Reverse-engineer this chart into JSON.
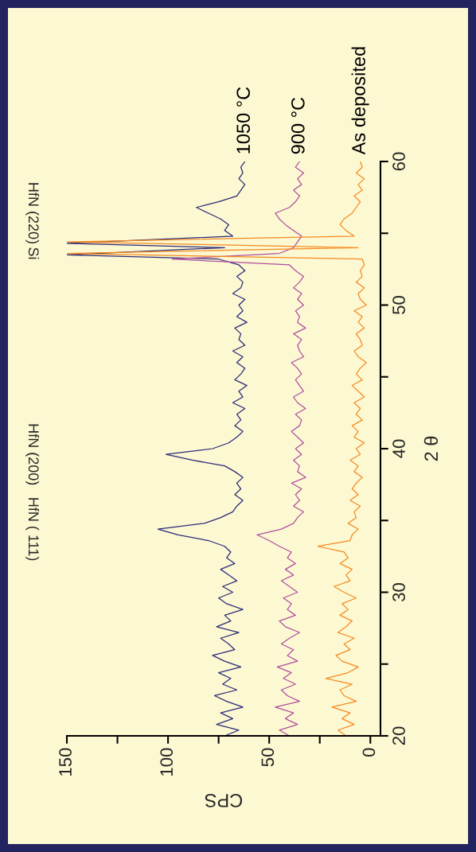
{
  "chart_data": {
    "type": "line",
    "xlabel": "CPS",
    "ylabel": "2 θ",
    "series": [
      {
        "name": "1050 °C",
        "color": "#2a2a78",
        "x": [
          72,
          65,
          76,
          68,
          74,
          63,
          71,
          77,
          66,
          73,
          69,
          75,
          64,
          72,
          78,
          67,
          70,
          74,
          65,
          76,
          69,
          72,
          63,
          71,
          75,
          68,
          73,
          66,
          70,
          74,
          67,
          71,
          69,
          72,
          80,
          95,
          105,
          82,
          74,
          68,
          66,
          63,
          67,
          64,
          66,
          63,
          67,
          72,
          88,
          101,
          78,
          70,
          66,
          63,
          67,
          64,
          66,
          62,
          68,
          63,
          65,
          61,
          67,
          64,
          62,
          66,
          63,
          68,
          62,
          65,
          64,
          67,
          61,
          66,
          63,
          65,
          62,
          68,
          64,
          63,
          66,
          62,
          65,
          75,
          150,
          72,
          150,
          68,
          72,
          70,
          74,
          80,
          86,
          75,
          66,
          64,
          62,
          65,
          63,
          64,
          62
        ],
        "values": [
          20,
          20.4,
          20.8,
          21.2,
          21.6,
          22,
          22.4,
          22.8,
          23.2,
          23.6,
          24,
          24.4,
          24.8,
          25.2,
          25.6,
          26,
          26.4,
          26.8,
          27.2,
          27.6,
          28,
          28.4,
          28.8,
          29.2,
          29.6,
          30,
          30.4,
          30.8,
          31.2,
          31.6,
          32,
          32.4,
          32.8,
          33.2,
          33.6,
          34,
          34.4,
          34.8,
          35.2,
          35.6,
          36,
          36.4,
          36.8,
          37.2,
          37.6,
          38,
          38.4,
          38.8,
          39.2,
          39.6,
          40,
          40.4,
          40.8,
          41.2,
          41.6,
          42,
          42.4,
          42.8,
          43.2,
          43.6,
          44,
          44.4,
          44.8,
          45.2,
          45.6,
          46,
          46.4,
          46.8,
          47.2,
          47.6,
          48,
          48.4,
          48.8,
          49.2,
          49.6,
          50,
          50.4,
          50.8,
          51.2,
          51.6,
          52,
          52.4,
          52.8,
          53.2,
          53.5,
          54,
          54.3,
          54.8,
          55.2,
          55.6,
          56,
          56.4,
          56.8,
          57.2,
          57.6,
          58,
          58.4,
          58.8,
          59.2,
          59.6,
          60
        ]
      },
      {
        "name": "900 °C",
        "color": "#b04fa0",
        "x": [
          40,
          45,
          36,
          42,
          38,
          47,
          35,
          41,
          44,
          37,
          43,
          39,
          46,
          36,
          41,
          38,
          44,
          40,
          35,
          42,
          45,
          37,
          41,
          39,
          43,
          36,
          40,
          44,
          38,
          42,
          37,
          41,
          39,
          45,
          50,
          56,
          44,
          38,
          36,
          33,
          38,
          35,
          37,
          34,
          39,
          32,
          36,
          35,
          38,
          34,
          37,
          33,
          36,
          39,
          35,
          34,
          37,
          32,
          36,
          38,
          33,
          35,
          37,
          34,
          36,
          39,
          33,
          35,
          36,
          34,
          38,
          32,
          36,
          35,
          37,
          33,
          36,
          34,
          38,
          35,
          33,
          37,
          40,
          98,
          45,
          38,
          36,
          34,
          38,
          42,
          45,
          47,
          40,
          37,
          35,
          38,
          34,
          36,
          33,
          37,
          35
        ],
        "values": [
          20,
          20.4,
          20.8,
          21.2,
          21.6,
          22,
          22.4,
          22.8,
          23.2,
          23.6,
          24,
          24.4,
          24.8,
          25.2,
          25.6,
          26,
          26.4,
          26.8,
          27.2,
          27.6,
          28,
          28.4,
          28.8,
          29.2,
          29.6,
          30,
          30.4,
          30.8,
          31.2,
          31.6,
          32,
          32.4,
          32.8,
          33.2,
          33.6,
          34,
          34.4,
          34.8,
          35.2,
          35.6,
          36,
          36.4,
          36.8,
          37.2,
          37.6,
          38,
          38.4,
          38.8,
          39.2,
          39.6,
          40,
          40.4,
          40.8,
          41.2,
          41.6,
          42,
          42.4,
          42.8,
          43.2,
          43.6,
          44,
          44.4,
          44.8,
          45.2,
          45.6,
          46,
          46.4,
          46.8,
          47.2,
          47.6,
          48,
          48.4,
          48.8,
          49.2,
          49.6,
          50,
          50.4,
          50.8,
          51.2,
          51.6,
          52,
          52.4,
          52.8,
          53.2,
          53.6,
          54,
          54.4,
          54.8,
          55.2,
          55.6,
          56,
          56.4,
          56.8,
          57.2,
          57.6,
          58,
          58.4,
          58.8,
          59.2,
          59.6,
          60
        ]
      },
      {
        "name": "As deposited",
        "color": "#f58a1f",
        "x": [
          12,
          16,
          8,
          14,
          10,
          19,
          7,
          13,
          15,
          9,
          22,
          11,
          6,
          14,
          17,
          10,
          13,
          8,
          16,
          12,
          9,
          15,
          11,
          14,
          7,
          13,
          18,
          10,
          12,
          9,
          15,
          11,
          13,
          26,
          10,
          9,
          6,
          11,
          7,
          8,
          5,
          10,
          6,
          9,
          7,
          4,
          8,
          6,
          10,
          5,
          7,
          3,
          8,
          6,
          9,
          4,
          7,
          5,
          8,
          3,
          6,
          9,
          4,
          7,
          5,
          2,
          6,
          8,
          4,
          5,
          7,
          3,
          6,
          4,
          8,
          2,
          5,
          6,
          3,
          7,
          4,
          5,
          3,
          4,
          150,
          6,
          150,
          8,
          12,
          15,
          13,
          9,
          7,
          5,
          8,
          4,
          6,
          3,
          7,
          4,
          5
        ],
        "values": [
          20,
          20.4,
          20.8,
          21.2,
          21.6,
          22,
          22.4,
          22.8,
          23.2,
          23.6,
          24,
          24.4,
          24.8,
          25.2,
          25.6,
          26,
          26.4,
          26.8,
          27.2,
          27.6,
          28,
          28.4,
          28.8,
          29.2,
          29.6,
          30,
          30.4,
          30.8,
          31.2,
          31.6,
          32,
          32.4,
          32.8,
          33.2,
          33.6,
          34,
          34.4,
          34.8,
          35.2,
          35.6,
          36,
          36.4,
          36.8,
          37.2,
          37.6,
          38,
          38.4,
          38.8,
          39.2,
          39.6,
          40,
          40.4,
          40.8,
          41.2,
          41.6,
          42,
          42.4,
          42.8,
          43.2,
          43.6,
          44,
          44.4,
          44.8,
          45.2,
          45.6,
          46,
          46.4,
          46.8,
          47.2,
          47.6,
          48,
          48.4,
          48.8,
          49.2,
          49.6,
          50,
          50.4,
          50.8,
          51.2,
          51.6,
          52,
          52.4,
          52.8,
          53.2,
          53.6,
          54,
          54.4,
          54.8,
          55.2,
          55.6,
          56,
          56.4,
          56.8,
          57.2,
          57.6,
          58,
          58.4,
          58.8,
          59.2,
          59.6,
          60
        ]
      }
    ],
    "xlim": [
      150,
      -5
    ],
    "xticks": [
      0,
      {
        "value": 25,
        "label": null
      },
      50,
      {
        "value": 75,
        "label": null
      },
      100,
      {
        "value": 125,
        "label": null
      },
      150
    ],
    "ylim": [
      20,
      60
    ],
    "yticks": [
      20,
      {
        "value": 25,
        "label": null
      },
      30,
      {
        "value": 35,
        "label": null
      },
      40,
      {
        "value": 45,
        "label": null
      },
      50,
      {
        "value": 55,
        "label": null
      },
      60
    ],
    "annotations": [
      "HfN ( 111)",
      "HfN (200)",
      "Si",
      "HfN (220)"
    ],
    "grid": false,
    "legend": false,
    "line_style": "solid",
    "marker": "none"
  }
}
